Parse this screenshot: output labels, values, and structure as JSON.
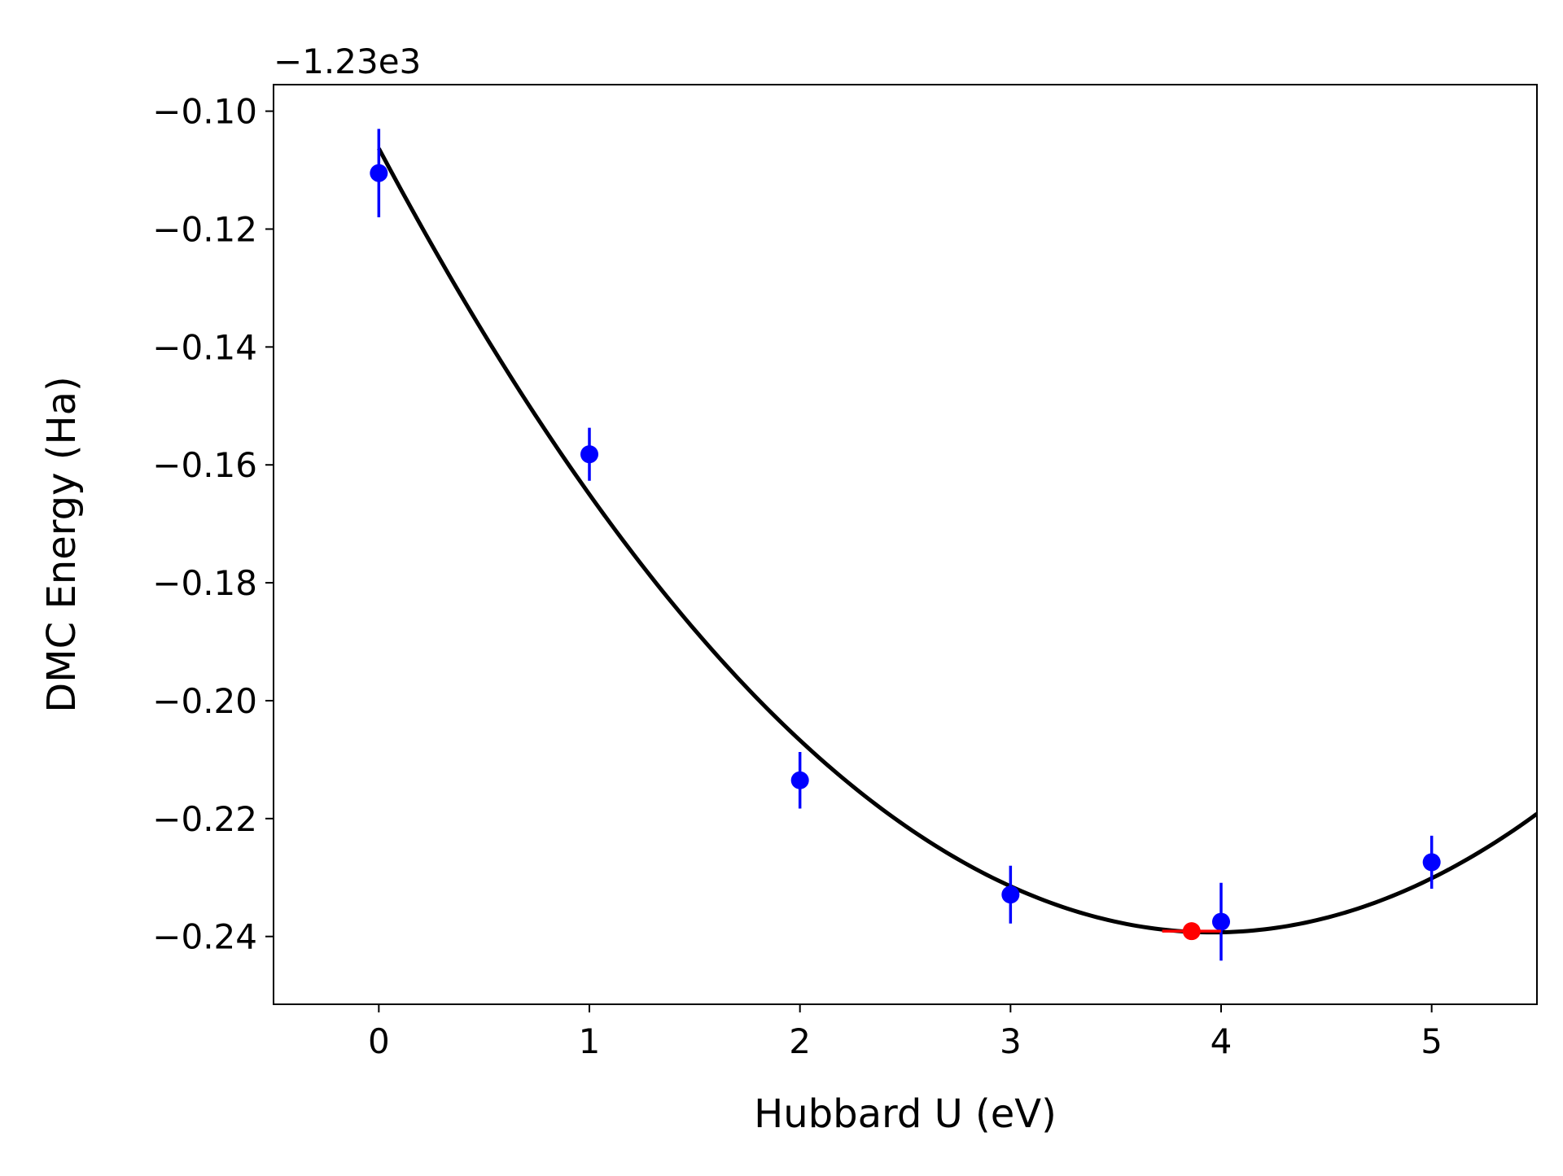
{
  "chart_data": {
    "type": "scatter",
    "xlabel": "Hubbard U (eV)",
    "ylabel": "DMC Energy (Ha)",
    "offset_label": "−1.23e3",
    "xlim": [
      -0.5,
      5.5
    ],
    "ylim": [
      -0.2515,
      -0.0955
    ],
    "xticks": [
      0,
      1,
      2,
      3,
      4,
      5
    ],
    "xtick_labels": [
      "0",
      "1",
      "2",
      "3",
      "4",
      "5"
    ],
    "yticks": [
      -0.1,
      -0.12,
      -0.14,
      -0.16,
      -0.18,
      -0.2,
      -0.22,
      -0.24
    ],
    "ytick_labels": [
      "−0.10",
      "−0.12",
      "−0.14",
      "−0.16",
      "−0.18",
      "−0.20",
      "−0.22",
      "−0.24"
    ],
    "grid": false,
    "legend": "none",
    "data_points": {
      "color": "#0000ff",
      "x": [
        0,
        1,
        2,
        3,
        4,
        5
      ],
      "y": [
        -0.1105,
        -0.1582,
        -0.2135,
        -0.2329,
        -0.2375,
        -0.2274
      ],
      "yerr": [
        0.0075,
        0.0045,
        0.0048,
        0.0049,
        0.0066,
        0.0045
      ]
    },
    "minimum_point": {
      "color": "#ff0000",
      "x": 3.86,
      "y": -0.2391,
      "xerr": 0.14
    },
    "fit_curve": {
      "color": "#000000",
      "type": "quadratic",
      "x_range": [
        0,
        5.5
      ],
      "vertex_x": 3.96,
      "vertex_y": -0.2393,
      "a": 0.00848
    }
  }
}
